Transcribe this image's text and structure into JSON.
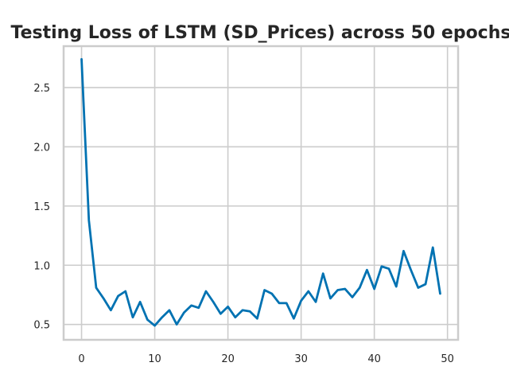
{
  "chart_data": {
    "type": "line",
    "title": "Testing Loss of LSTM (SD_Prices) across 50 epochs",
    "xlabel": "",
    "ylabel": "",
    "xlim": [
      -2.45,
      51.45
    ],
    "ylim": [
      0.37,
      2.85
    ],
    "xticks": [
      0,
      10,
      20,
      30,
      40,
      50
    ],
    "xtick_labels": [
      "0",
      "10",
      "20",
      "30",
      "40",
      "50"
    ],
    "yticks": [
      0.5,
      1.0,
      1.5,
      2.0,
      2.5
    ],
    "ytick_labels": [
      "0.5",
      "1.0",
      "1.5",
      "2.0",
      "2.5"
    ],
    "grid": true,
    "legend": "none",
    "series": [
      {
        "color": "#0072b2",
        "x": [
          0,
          1,
          2,
          3,
          4,
          5,
          6,
          7,
          8,
          9,
          10,
          11,
          12,
          13,
          14,
          15,
          16,
          17,
          18,
          19,
          20,
          21,
          22,
          23,
          24,
          25,
          26,
          27,
          28,
          29,
          30,
          31,
          32,
          33,
          34,
          35,
          36,
          37,
          38,
          39,
          40,
          41,
          42,
          43,
          44,
          45,
          46,
          47,
          48,
          49
        ],
        "y": [
          2.74,
          1.38,
          0.81,
          0.72,
          0.62,
          0.74,
          0.78,
          0.56,
          0.69,
          0.54,
          0.49,
          0.56,
          0.62,
          0.5,
          0.6,
          0.66,
          0.64,
          0.78,
          0.69,
          0.59,
          0.65,
          0.56,
          0.62,
          0.61,
          0.55,
          0.79,
          0.76,
          0.68,
          0.68,
          0.55,
          0.7,
          0.78,
          0.69,
          0.93,
          0.72,
          0.79,
          0.8,
          0.73,
          0.81,
          0.96,
          0.8,
          0.99,
          0.97,
          0.82,
          1.12,
          0.96,
          0.81,
          0.84,
          1.15,
          0.76
        ]
      }
    ]
  }
}
